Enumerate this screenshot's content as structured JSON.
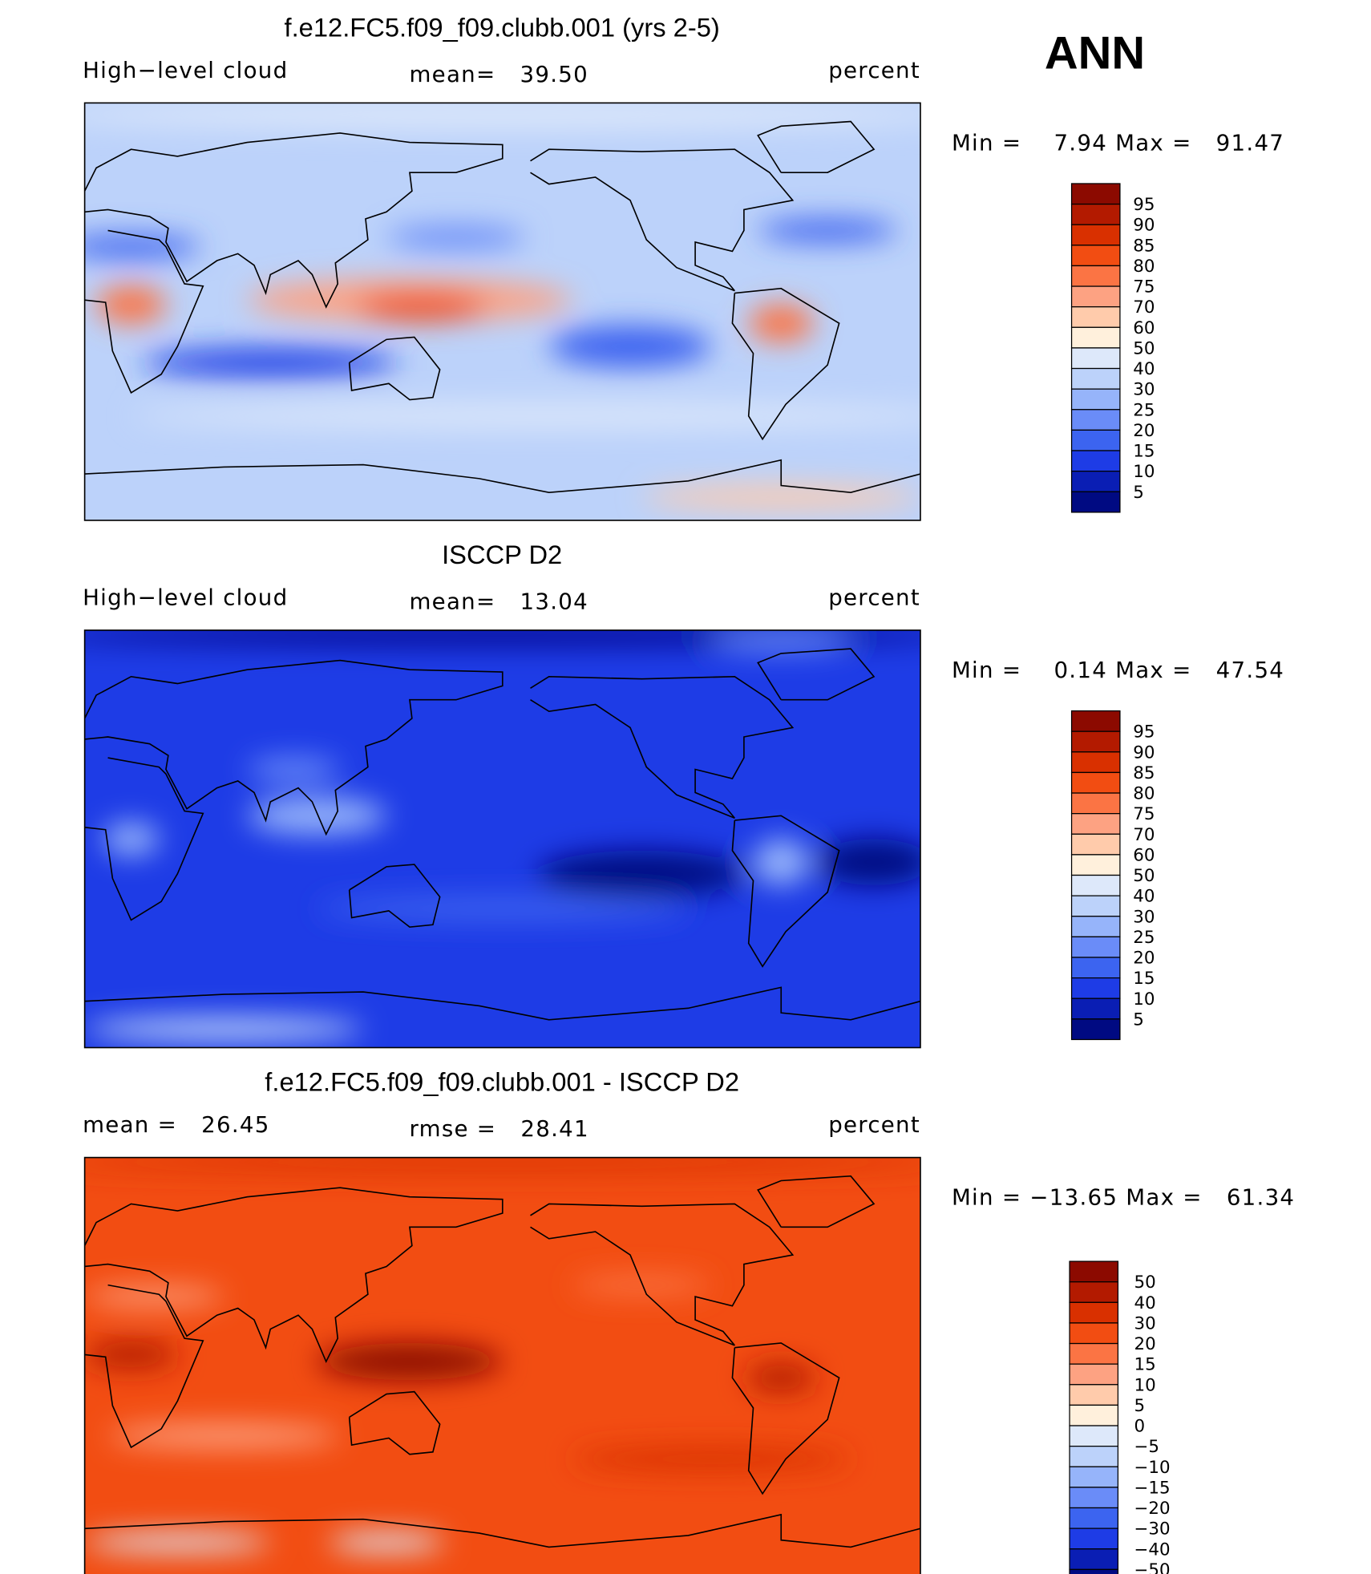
{
  "season": "ANN",
  "panels": [
    {
      "title": "f.e12.FC5.f09_f09.clubb.001 (yrs 2-5)",
      "left": "High−level cloud",
      "center": "mean=   39.50",
      "units": "percent",
      "minmax": "Min =    7.94 Max =   91.47",
      "colorbar": {
        "labels": [
          "95",
          "90",
          "85",
          "80",
          "75",
          "70",
          "60",
          "50",
          "40",
          "30",
          "25",
          "20",
          "15",
          "10",
          "5"
        ],
        "colors": [
          "#8c0a00",
          "#b31a00",
          "#d93000",
          "#f24d12",
          "#fb7444",
          "#fda282",
          "#ffcbab",
          "#fff0dc",
          "#dde8fa",
          "#bcd2fa",
          "#96b4fa",
          "#6a8cf8",
          "#3c64f0",
          "#1e3ce6",
          "#0a1eb4",
          "#000a82"
        ]
      }
    },
    {
      "title": "ISCCP D2",
      "left": "High−level cloud",
      "center": "mean=   13.04",
      "units": "percent",
      "minmax": "Min =    0.14 Max =   47.54",
      "colorbar": {
        "labels": [
          "95",
          "90",
          "85",
          "80",
          "75",
          "70",
          "60",
          "50",
          "40",
          "30",
          "25",
          "20",
          "15",
          "10",
          "5"
        ],
        "colors": [
          "#8c0a00",
          "#b31a00",
          "#d93000",
          "#f24d12",
          "#fb7444",
          "#fda282",
          "#ffcbab",
          "#fff0dc",
          "#dde8fa",
          "#bcd2fa",
          "#96b4fa",
          "#6a8cf8",
          "#3c64f0",
          "#1e3ce6",
          "#0a1eb4",
          "#000a82"
        ]
      }
    },
    {
      "title": "f.e12.FC5.f09_f09.clubb.001 - ISCCP D2",
      "left": "mean =   26.45",
      "center": "rmse =   28.41",
      "units": "percent",
      "minmax": "Min = −13.65 Max =   61.34",
      "colorbar": {
        "labels": [
          "50",
          "40",
          "30",
          "20",
          "15",
          "10",
          "5",
          "0",
          "−5",
          "−10",
          "−15",
          "−20",
          "−30",
          "−40",
          "−50"
        ],
        "colors": [
          "#8c0a00",
          "#b31a00",
          "#d93000",
          "#f24d12",
          "#fb7444",
          "#fda282",
          "#ffcbab",
          "#fff0dc",
          "#dde8fa",
          "#bcd2fa",
          "#96b4fa",
          "#6a8cf8",
          "#3c64f0",
          "#1e3ce6",
          "#0a1eb4",
          "#000a82"
        ]
      }
    }
  ]
}
